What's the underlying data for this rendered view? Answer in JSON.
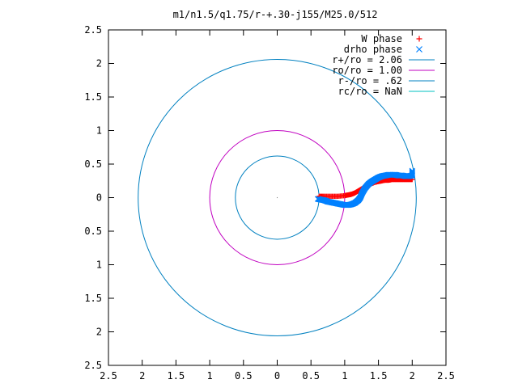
{
  "chart_data": {
    "type": "scatter",
    "title": "m1/n1.5/q1.75/r-+.30-j155/M25.0/512",
    "xlabel": "",
    "ylabel": "",
    "xlim": [
      -2.5,
      2.5
    ],
    "ylim": [
      -2.5,
      2.5
    ],
    "x_ticks": [
      -2.5,
      -2,
      -1.5,
      -1,
      -0.5,
      0,
      0.5,
      1,
      1.5,
      2,
      2.5
    ],
    "y_ticks": [
      -2.5,
      -2,
      -1.5,
      -1,
      -0.5,
      0,
      0.5,
      1,
      1.5,
      2,
      2.5
    ],
    "x_tick_labels": [
      "2.5",
      "2",
      "1.5",
      "1",
      "0.5",
      "0",
      "0.5",
      "1",
      "1.5",
      "2",
      "2.5"
    ],
    "y_tick_labels": [
      "2.5",
      "2",
      "1.5",
      "1",
      "0.5",
      "0",
      "0.5",
      "1",
      "1.5",
      "2",
      "2.5"
    ],
    "grid": false,
    "legend_position": "top-right",
    "series": [
      {
        "name": "W phase",
        "kind": "points",
        "marker": "plus",
        "color": "#ff0000",
        "x": [
          0.62,
          0.7,
          0.8,
          0.9,
          1.0,
          1.05,
          1.1,
          1.15,
          1.2,
          1.25,
          1.3,
          1.35,
          1.4,
          1.45,
          1.5,
          1.55,
          1.6,
          1.65,
          1.7,
          1.75,
          1.8,
          1.85,
          1.9,
          1.95,
          2.0
        ],
        "y": [
          0.02,
          0.02,
          0.02,
          0.02,
          0.03,
          0.04,
          0.05,
          0.07,
          0.1,
          0.13,
          0.16,
          0.19,
          0.21,
          0.23,
          0.24,
          0.25,
          0.26,
          0.26,
          0.27,
          0.27,
          0.27,
          0.27,
          0.27,
          0.27,
          0.27
        ]
      },
      {
        "name": "drho phase",
        "kind": "points",
        "marker": "cross",
        "color": "#0080ff",
        "x": [
          0.6,
          0.65,
          0.7,
          0.75,
          0.8,
          0.85,
          0.9,
          0.95,
          1.0,
          1.05,
          1.1,
          1.15,
          1.2,
          1.23,
          1.26,
          1.3,
          1.35,
          1.4,
          1.45,
          1.5,
          1.55,
          1.6,
          1.65,
          1.7,
          1.75,
          1.8,
          1.85,
          1.9,
          1.95,
          2.0,
          2.0
        ],
        "y": [
          -0.02,
          -0.03,
          -0.04,
          -0.06,
          -0.07,
          -0.08,
          -0.09,
          -0.1,
          -0.11,
          -0.11,
          -0.1,
          -0.08,
          -0.04,
          0.0,
          0.07,
          0.14,
          0.2,
          0.24,
          0.27,
          0.3,
          0.32,
          0.33,
          0.34,
          0.34,
          0.34,
          0.33,
          0.33,
          0.32,
          0.32,
          0.33,
          0.4
        ]
      },
      {
        "name": "r+/ro = 2.06",
        "kind": "circle",
        "radius": 2.06,
        "color": "#0080c0"
      },
      {
        "name": "ro/ro = 1.00",
        "kind": "circle",
        "radius": 1.0,
        "color": "#c000c0"
      },
      {
        "name": "r-/ro = .62",
        "kind": "circle",
        "radius": 0.62,
        "color": "#0080c0"
      },
      {
        "name": "rc/ro = NaN",
        "kind": "circle",
        "radius": null,
        "color": "#00c0c0"
      }
    ]
  }
}
